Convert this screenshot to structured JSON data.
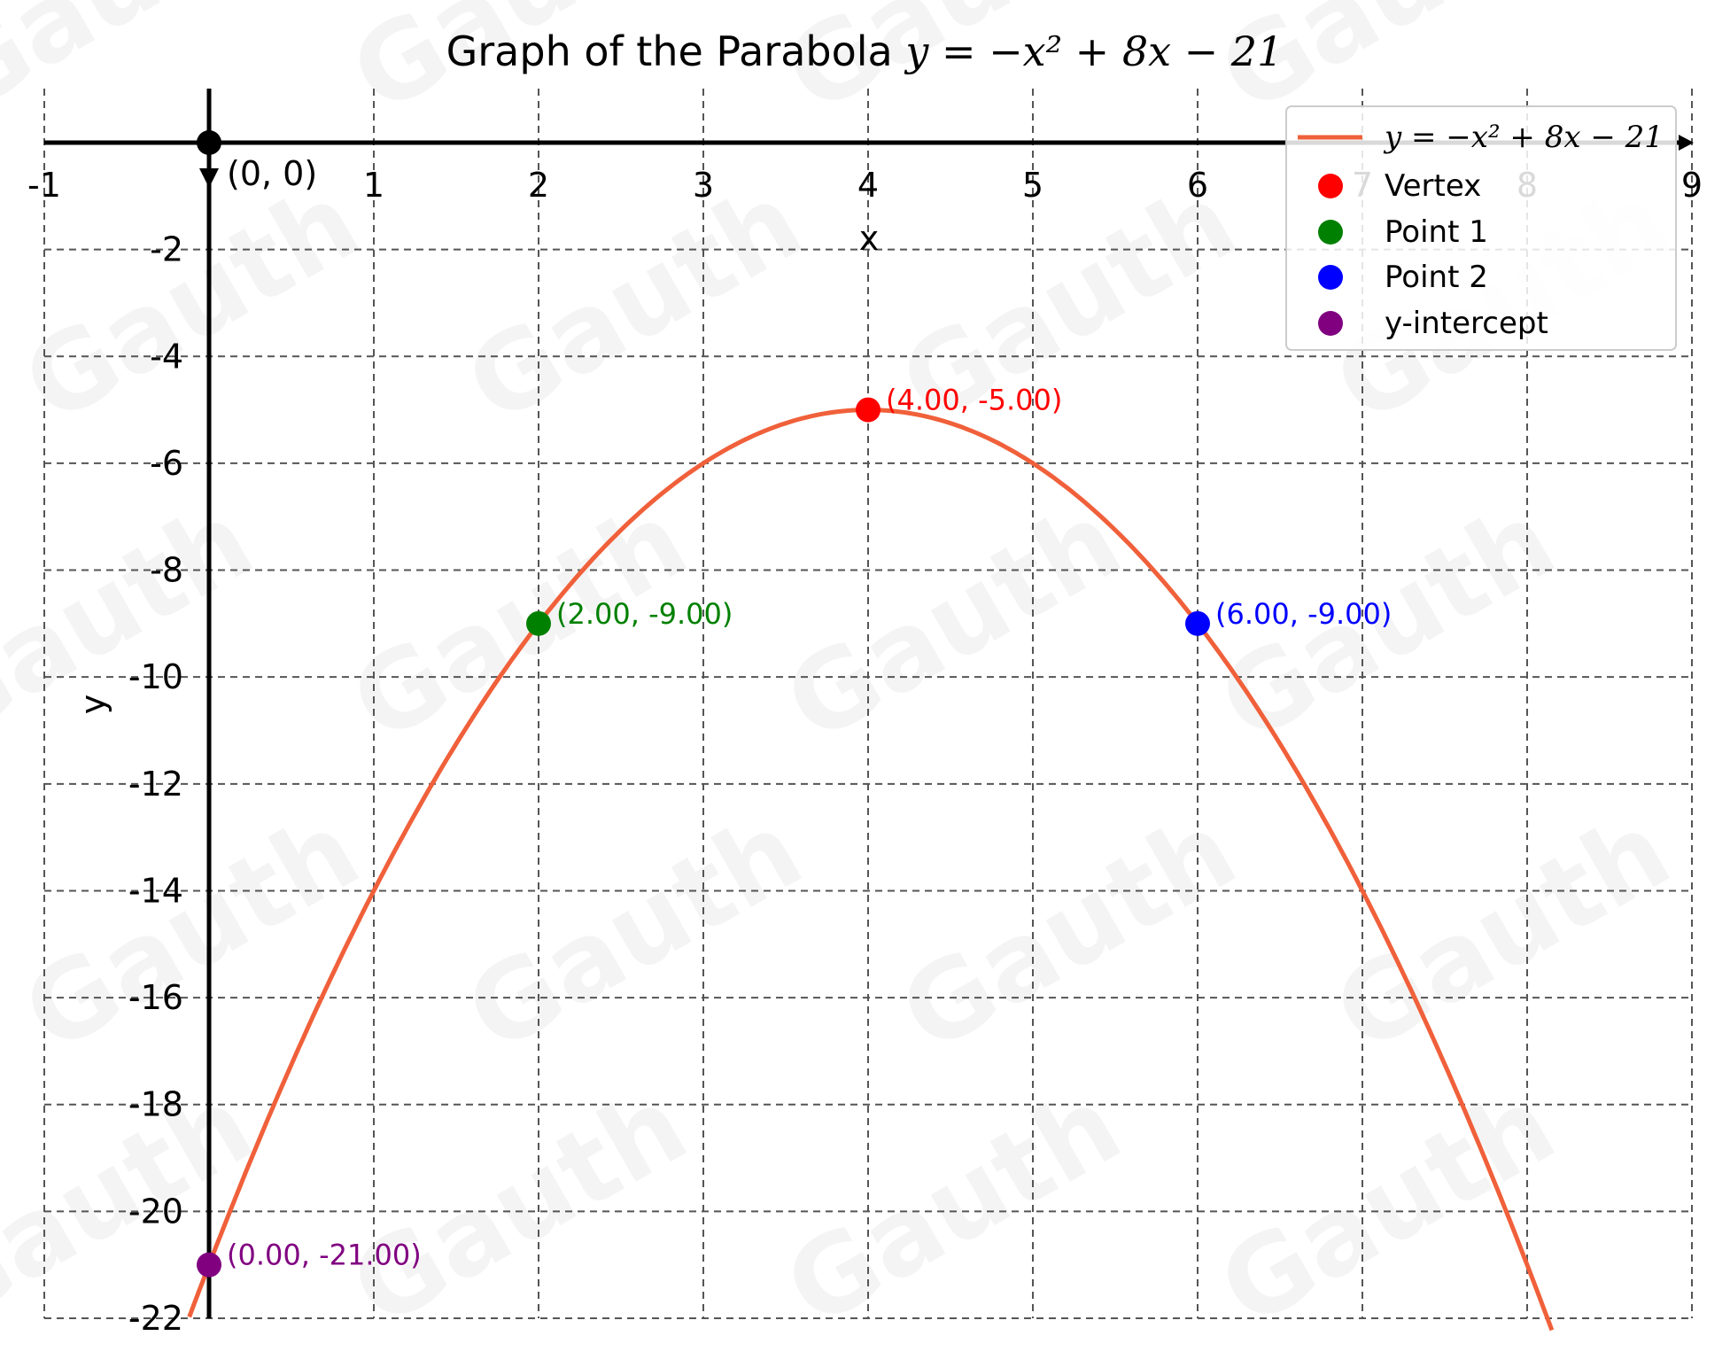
{
  "chart_data": {
    "type": "line",
    "title_prefix": "Graph of the Parabola",
    "equation": "y = −x² + 8x − 21",
    "equation_plain": "y = -x^2 + 8x - 21",
    "xlabel": "x",
    "ylabel": "y",
    "xlim": [
      -1,
      9
    ],
    "ylim": [
      -22,
      0
    ],
    "x_ticks": [
      -1,
      1,
      2,
      3,
      4,
      5,
      6,
      7,
      8,
      9
    ],
    "x_tick_labels": [
      "-1",
      "1",
      "2",
      "3",
      "4",
      "5",
      "6",
      "7",
      "8",
      "9"
    ],
    "y_ticks": [
      -22,
      -20,
      -18,
      -16,
      -14,
      -12,
      -10,
      -8,
      -6,
      -4,
      -2
    ],
    "y_tick_labels": [
      "-22",
      "-20",
      "-18",
      "-16",
      "-14",
      "-12",
      "-10",
      "-8",
      "-6",
      "-4",
      "-2"
    ],
    "grid": true,
    "legend_position": "top-right",
    "curve": {
      "name": "y = −x² + 8x − 21",
      "color": "#f0603a",
      "coefficients": {
        "a": -1,
        "b": 8,
        "c": -21
      },
      "x_range": [
        -0.12,
        8.15
      ]
    },
    "points": [
      {
        "name": "Vertex",
        "x": 4,
        "y": -5,
        "label": "(4.00, -5.00)",
        "color": "#ff0000"
      },
      {
        "name": "Point 1",
        "x": 2,
        "y": -9,
        "label": "(2.00, -9.00)",
        "color": "#008000"
      },
      {
        "name": "Point 2",
        "x": 6,
        "y": -9,
        "label": "(6.00, -9.00)",
        "color": "#0000ff"
      },
      {
        "name": "y-intercept",
        "x": 0,
        "y": -21,
        "label": "(0.00, -21.00)",
        "color": "#800080"
      }
    ],
    "origin": {
      "x": 0,
      "y": 0,
      "label": "(0, 0)",
      "color": "#000000"
    },
    "watermark": "Gauth"
  }
}
